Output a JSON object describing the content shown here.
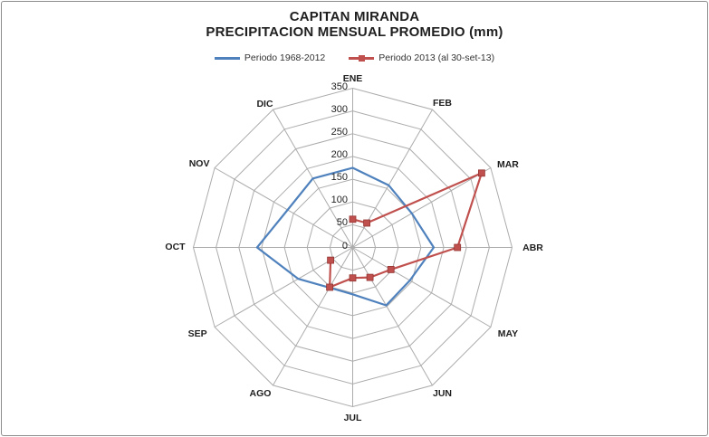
{
  "title": {
    "line1": "CAPITAN MIRANDA",
    "line2": "PRECIPITACION MENSUAL PROMEDIO (mm)"
  },
  "legend": {
    "items": [
      {
        "label": "Periodo 1968-2012",
        "color": "#4F81BD",
        "swatch": "line"
      },
      {
        "label": "Periodo 2013 (al 30-set-13)",
        "color": "#C0504D",
        "swatch": "line-square"
      }
    ]
  },
  "chart_data": {
    "type": "radar",
    "categories": [
      "ENE",
      "FEB",
      "MAR",
      "ABR",
      "MAY",
      "JUN",
      "JUL",
      "AGO",
      "SEP",
      "OCT",
      "NOV",
      "DIC"
    ],
    "axis": {
      "min": 0,
      "max": 350,
      "step": 50,
      "ticks": [
        0,
        50,
        100,
        150,
        200,
        250,
        300,
        350
      ]
    },
    "grid": {
      "visible": true,
      "color": "#ACACAC",
      "shape": "polygon",
      "spokes": 12
    },
    "legend_position": "top",
    "series": [
      {
        "name": "Periodo 1968-2012",
        "color": "#4F81BD",
        "closed": true,
        "marker": "none",
        "values": [
          175,
          158,
          150,
          178,
          145,
          147,
          103,
          102,
          138,
          210,
          165,
          175
        ]
      },
      {
        "name": "Periodo 2013 (al 30-set-13)",
        "color": "#C0504D",
        "marker_fill": "#C0504D",
        "marker_edge": "#943634",
        "closed": false,
        "marker": "square",
        "values": [
          62,
          62,
          327,
          230,
          97,
          76,
          67,
          101,
          56,
          null,
          null,
          null
        ]
      }
    ]
  }
}
